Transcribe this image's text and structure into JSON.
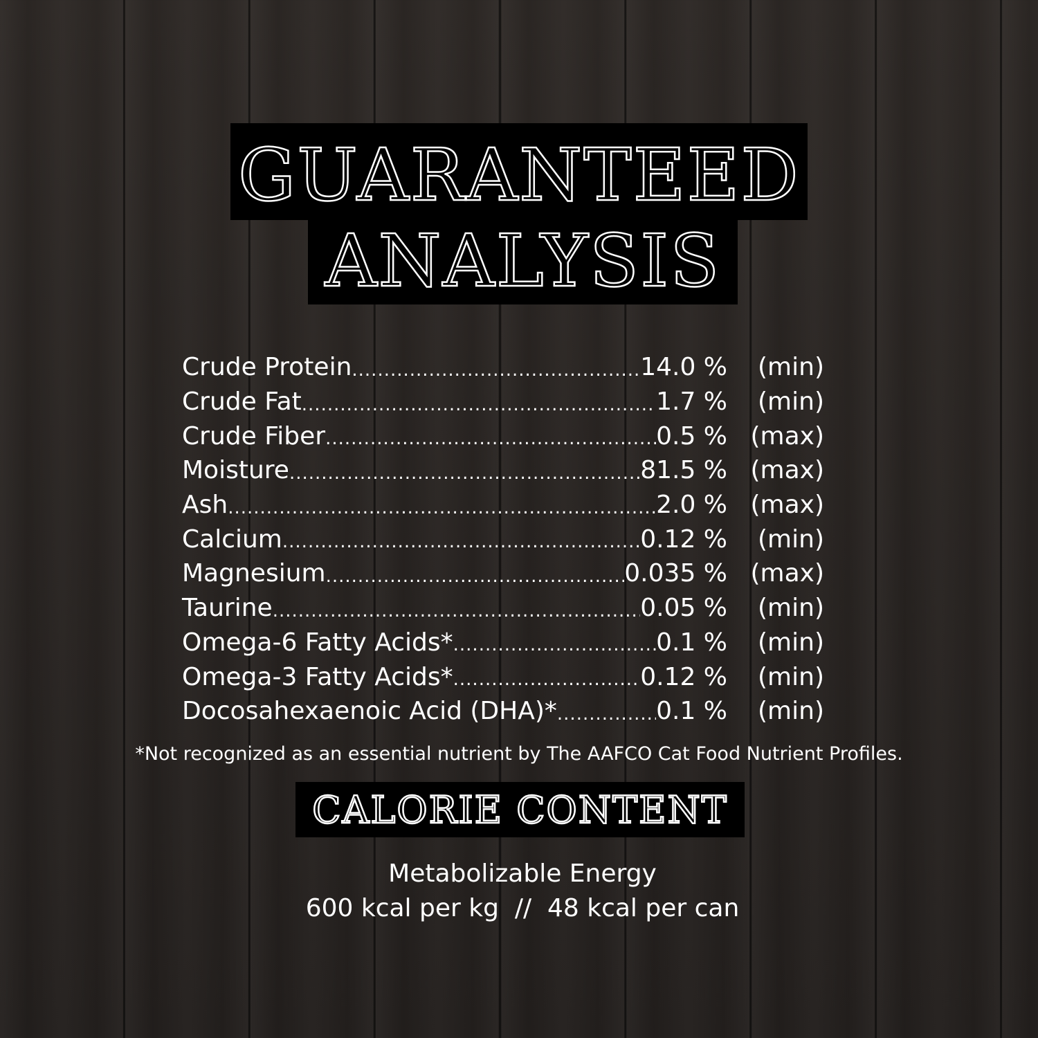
{
  "title": {
    "line1": "GUARANTEED",
    "line2": "ANALYSIS"
  },
  "nutrients": [
    {
      "name": "Crude Protein",
      "value": "14.0 %",
      "qualifier": "(min)"
    },
    {
      "name": "Crude Fat",
      "value": "1.7 %",
      "qualifier": "(min)"
    },
    {
      "name": "Crude Fiber",
      "value": "0.5 %",
      "qualifier": "(max)"
    },
    {
      "name": "Moisture",
      "value": "81.5 %",
      "qualifier": "(max)"
    },
    {
      "name": "Ash",
      "value": "2.0 %",
      "qualifier": "(max)"
    },
    {
      "name": "Calcium",
      "value": "0.12 %",
      "qualifier": "(min)"
    },
    {
      "name": "Magnesium",
      "value": "0.035 %",
      "qualifier": "(max)"
    },
    {
      "name": "Taurine",
      "value": "0.05 %",
      "qualifier": "(min)"
    },
    {
      "name": "Omega-6 Fatty Acids*",
      "value": "0.1 %",
      "qualifier": "(min)"
    },
    {
      "name": "Omega-3 Fatty Acids*",
      "value": "0.12 %",
      "qualifier": "(min)"
    },
    {
      "name": "Docosahexaenoic Acid (DHA)*",
      "value": "0.1 %",
      "qualifier": "(min)"
    }
  ],
  "footnote": "*Not recognized as an essential nutrient by The AAFCO  Cat Food Nutrient Profiles.",
  "calorie": {
    "heading": "CALORIE CONTENT",
    "label": "Metabolizable Energy",
    "value": "600 kcal per kg  //  48 kcal per can"
  }
}
